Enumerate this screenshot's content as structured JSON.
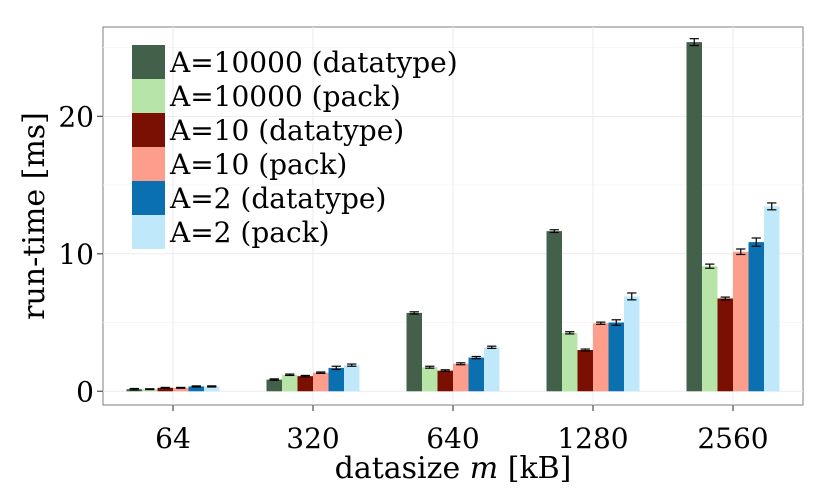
{
  "chart_data": {
    "type": "bar",
    "xlabel_prefix": "datasize ",
    "xlabel_var": "m",
    "xlabel_suffix": " [kB]",
    "ylabel": "run-time [ms]",
    "ylim": [
      -1,
      26.5
    ],
    "yticks": [
      0,
      10,
      20
    ],
    "grid": true,
    "legend_position": "top-left",
    "categories": [
      "64",
      "320",
      "640",
      "1280",
      "2560"
    ],
    "series": [
      {
        "name": "A=10000 (datatype)",
        "color": "#43614a",
        "values": [
          0.15,
          0.85,
          5.7,
          11.65,
          25.4
        ],
        "err": [
          0.05,
          0.05,
          0.08,
          0.1,
          0.25
        ]
      },
      {
        "name": "A=10000 (pack)",
        "color": "#b7e4a7",
        "values": [
          0.15,
          1.2,
          1.75,
          4.25,
          9.1
        ],
        "err": [
          0.03,
          0.05,
          0.07,
          0.08,
          0.15
        ]
      },
      {
        "name": "A=10 (datatype)",
        "color": "#7a1004",
        "values": [
          0.25,
          1.1,
          1.5,
          3.0,
          6.75
        ],
        "err": [
          0.03,
          0.05,
          0.06,
          0.07,
          0.1
        ]
      },
      {
        "name": "A=10 (pack)",
        "color": "#fd9e8c",
        "values": [
          0.25,
          1.35,
          2.0,
          4.95,
          10.15
        ],
        "err": [
          0.03,
          0.05,
          0.07,
          0.08,
          0.2
        ]
      },
      {
        "name": "A=2 (datatype)",
        "color": "#0b70b0",
        "values": [
          0.35,
          1.7,
          2.45,
          5.0,
          10.85
        ],
        "err": [
          0.04,
          0.12,
          0.08,
          0.2,
          0.3
        ]
      },
      {
        "name": "A=2 (pack)",
        "color": "#bfe9fb",
        "values": [
          0.35,
          1.9,
          3.2,
          6.9,
          13.45
        ],
        "err": [
          0.04,
          0.08,
          0.08,
          0.25,
          0.25
        ]
      }
    ]
  }
}
